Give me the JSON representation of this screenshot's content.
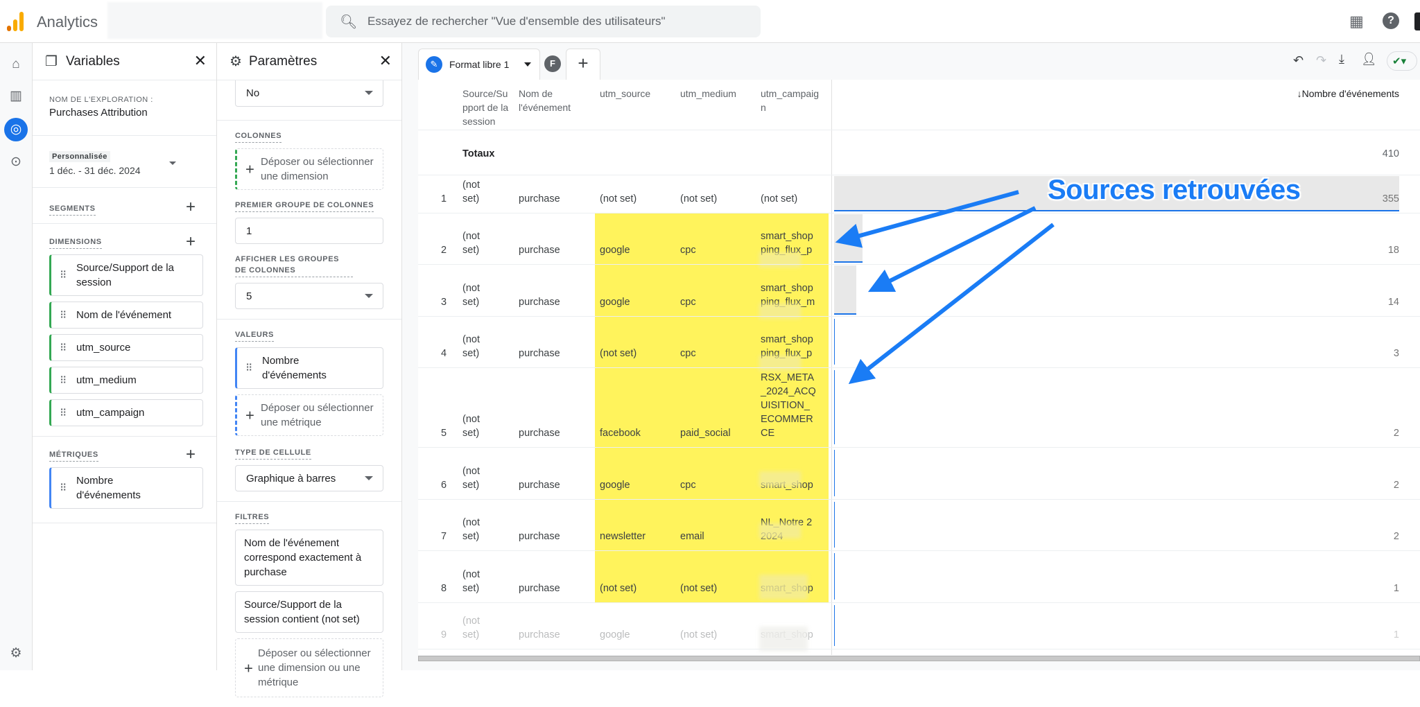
{
  "topbar": {
    "app_title": "Analytics",
    "search_placeholder": "Essayez de rechercher \"Vue d'ensemble des utilisateurs\"",
    "icons": [
      "search-icon",
      "apps-grid-icon",
      "help-icon"
    ]
  },
  "rail": {
    "icons": [
      "home-icon",
      "reports-icon",
      "explore-icon",
      "advertising-icon",
      "settings-icon"
    ],
    "active": "explore-icon"
  },
  "variables": {
    "title": "Variables",
    "exploration_label": "NOM DE L'EXPLORATION :",
    "exploration_name": "Purchases Attribution",
    "date_badge": "Personnalisée",
    "date_range": "1 déc. - 31 déc. 2024",
    "segments_label": "SEGMENTS",
    "dimensions_label": "DIMENSIONS",
    "dimensions": [
      "Source/Support de la session",
      "Nom de l'événement",
      "utm_source",
      "utm_medium",
      "utm_campaign"
    ],
    "metrics_label": "MÉTRIQUES",
    "metrics": [
      "Nombre d'événements"
    ]
  },
  "parametres": {
    "title": "Paramètres",
    "top_select": "No",
    "columns_label": "COLONNES",
    "columns_drop": "Déposer ou sélectionner une dimension",
    "first_group_label": "PREMIER GROUPE DE COLONNES",
    "first_group_value": "1",
    "show_groups_label": "AFFICHER LES GROUPES DE COLONNES",
    "show_groups_value": "5",
    "values_label": "VALEURS",
    "values_chip": "Nombre d'événements",
    "values_drop": "Déposer ou sélectionner une métrique",
    "cell_type_label": "TYPE DE CELLULE",
    "cell_type_value": "Graphique à barres",
    "filters_label": "FILTRES",
    "filters": [
      "Nom de l'événement correspond exactement à purchase",
      "Source/Support de la session contient (not set)"
    ],
    "filters_drop": "Déposer ou sélectionner une dimension ou une métrique"
  },
  "tabs": {
    "active": "Format libre 1",
    "second_initial": "F",
    "add": "+",
    "toolbar_icons": [
      "undo-icon",
      "redo-icon",
      "download-icon",
      "share-icon",
      "check-status-icon"
    ]
  },
  "table": {
    "headers": [
      "Source/Support de la session",
      "Nom de l'événement",
      "utm_source",
      "utm_medium",
      "utm_campaign"
    ],
    "metric_header": "↓Nombre d'événements",
    "totals_label": "Totaux",
    "totals_value": "410",
    "rows": [
      {
        "n": "1",
        "source": "(not set)",
        "event": "purchase",
        "utm_source": "(not set)",
        "utm_medium": "(not set)",
        "utm_campaign": "(not set)",
        "value": 355
      },
      {
        "n": "2",
        "source": "(not set)",
        "event": "purchase",
        "utm_source": "google",
        "utm_medium": "cpc",
        "utm_campaign": "smart_shopping_flux_p",
        "value": 18
      },
      {
        "n": "3",
        "source": "(not set)",
        "event": "purchase",
        "utm_source": "google",
        "utm_medium": "cpc",
        "utm_campaign": "smart_shopping_flux_m",
        "value": 14
      },
      {
        "n": "4",
        "source": "(not set)",
        "event": "purchase",
        "utm_source": "(not set)",
        "utm_medium": "cpc",
        "utm_campaign": "smart_shopping_flux_p",
        "value": 3
      },
      {
        "n": "5",
        "source": "(not set)",
        "event": "purchase",
        "utm_source": "facebook",
        "utm_medium": "paid_social",
        "utm_campaign": "RSX_META_2024_ACQUISITION_ECOMMERCE",
        "value": 2
      },
      {
        "n": "6",
        "source": "(not set)",
        "event": "purchase",
        "utm_source": "google",
        "utm_medium": "cpc",
        "utm_campaign": "smart_shop",
        "value": 2
      },
      {
        "n": "7",
        "source": "(not set)",
        "event": "purchase",
        "utm_source": "newsletter",
        "utm_medium": "email",
        "utm_campaign": "NL_Notre 22024",
        "value": 2
      },
      {
        "n": "8",
        "source": "(not set)",
        "event": "purchase",
        "utm_source": "(not set)",
        "utm_medium": "(not set)",
        "utm_campaign": "smart_shop",
        "value": 1
      },
      {
        "n": "9",
        "source": "(not set)",
        "event": "purchase",
        "utm_source": "google",
        "utm_medium": "(not set)",
        "utm_campaign": "smart_shop",
        "value": 1
      }
    ]
  },
  "annotation": {
    "text": "Sources retrouvées",
    "color": "#1a7cf5",
    "highlight_color": "#fff35c"
  }
}
